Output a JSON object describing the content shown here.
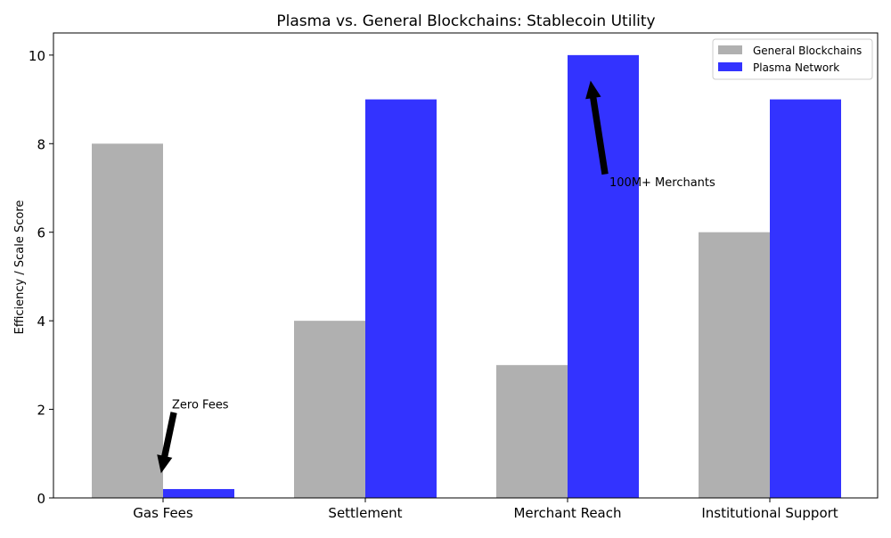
{
  "chart_data": {
    "type": "bar",
    "title": "Plasma vs. General Blockchains: Stablecoin Utility",
    "xlabel": "",
    "ylabel": "Efficiency / Scale Score",
    "categories": [
      "Gas Fees",
      "Settlement",
      "Merchant Reach",
      "Institutional Support"
    ],
    "ylim": [
      0,
      10.5
    ],
    "yticks": [
      0,
      2,
      4,
      6,
      8,
      10
    ],
    "grid": false,
    "legend_position": "top-right",
    "series": [
      {
        "name": "General Blockchains",
        "color": "#b0b0b0",
        "values": [
          8,
          4,
          3,
          6
        ]
      },
      {
        "name": "Plasma Network",
        "color": "#3333ff",
        "values": [
          0.2,
          9,
          10,
          9
        ]
      }
    ],
    "annotations": [
      {
        "text": "Zero Fees",
        "category": "Gas Fees",
        "series": 1,
        "target_y": 0.6,
        "text_y": 1.8
      },
      {
        "text": "100M+ Merchants",
        "category": "Merchant Reach",
        "series": 1,
        "target_y": 9.4,
        "text_y": 7.3
      }
    ]
  }
}
